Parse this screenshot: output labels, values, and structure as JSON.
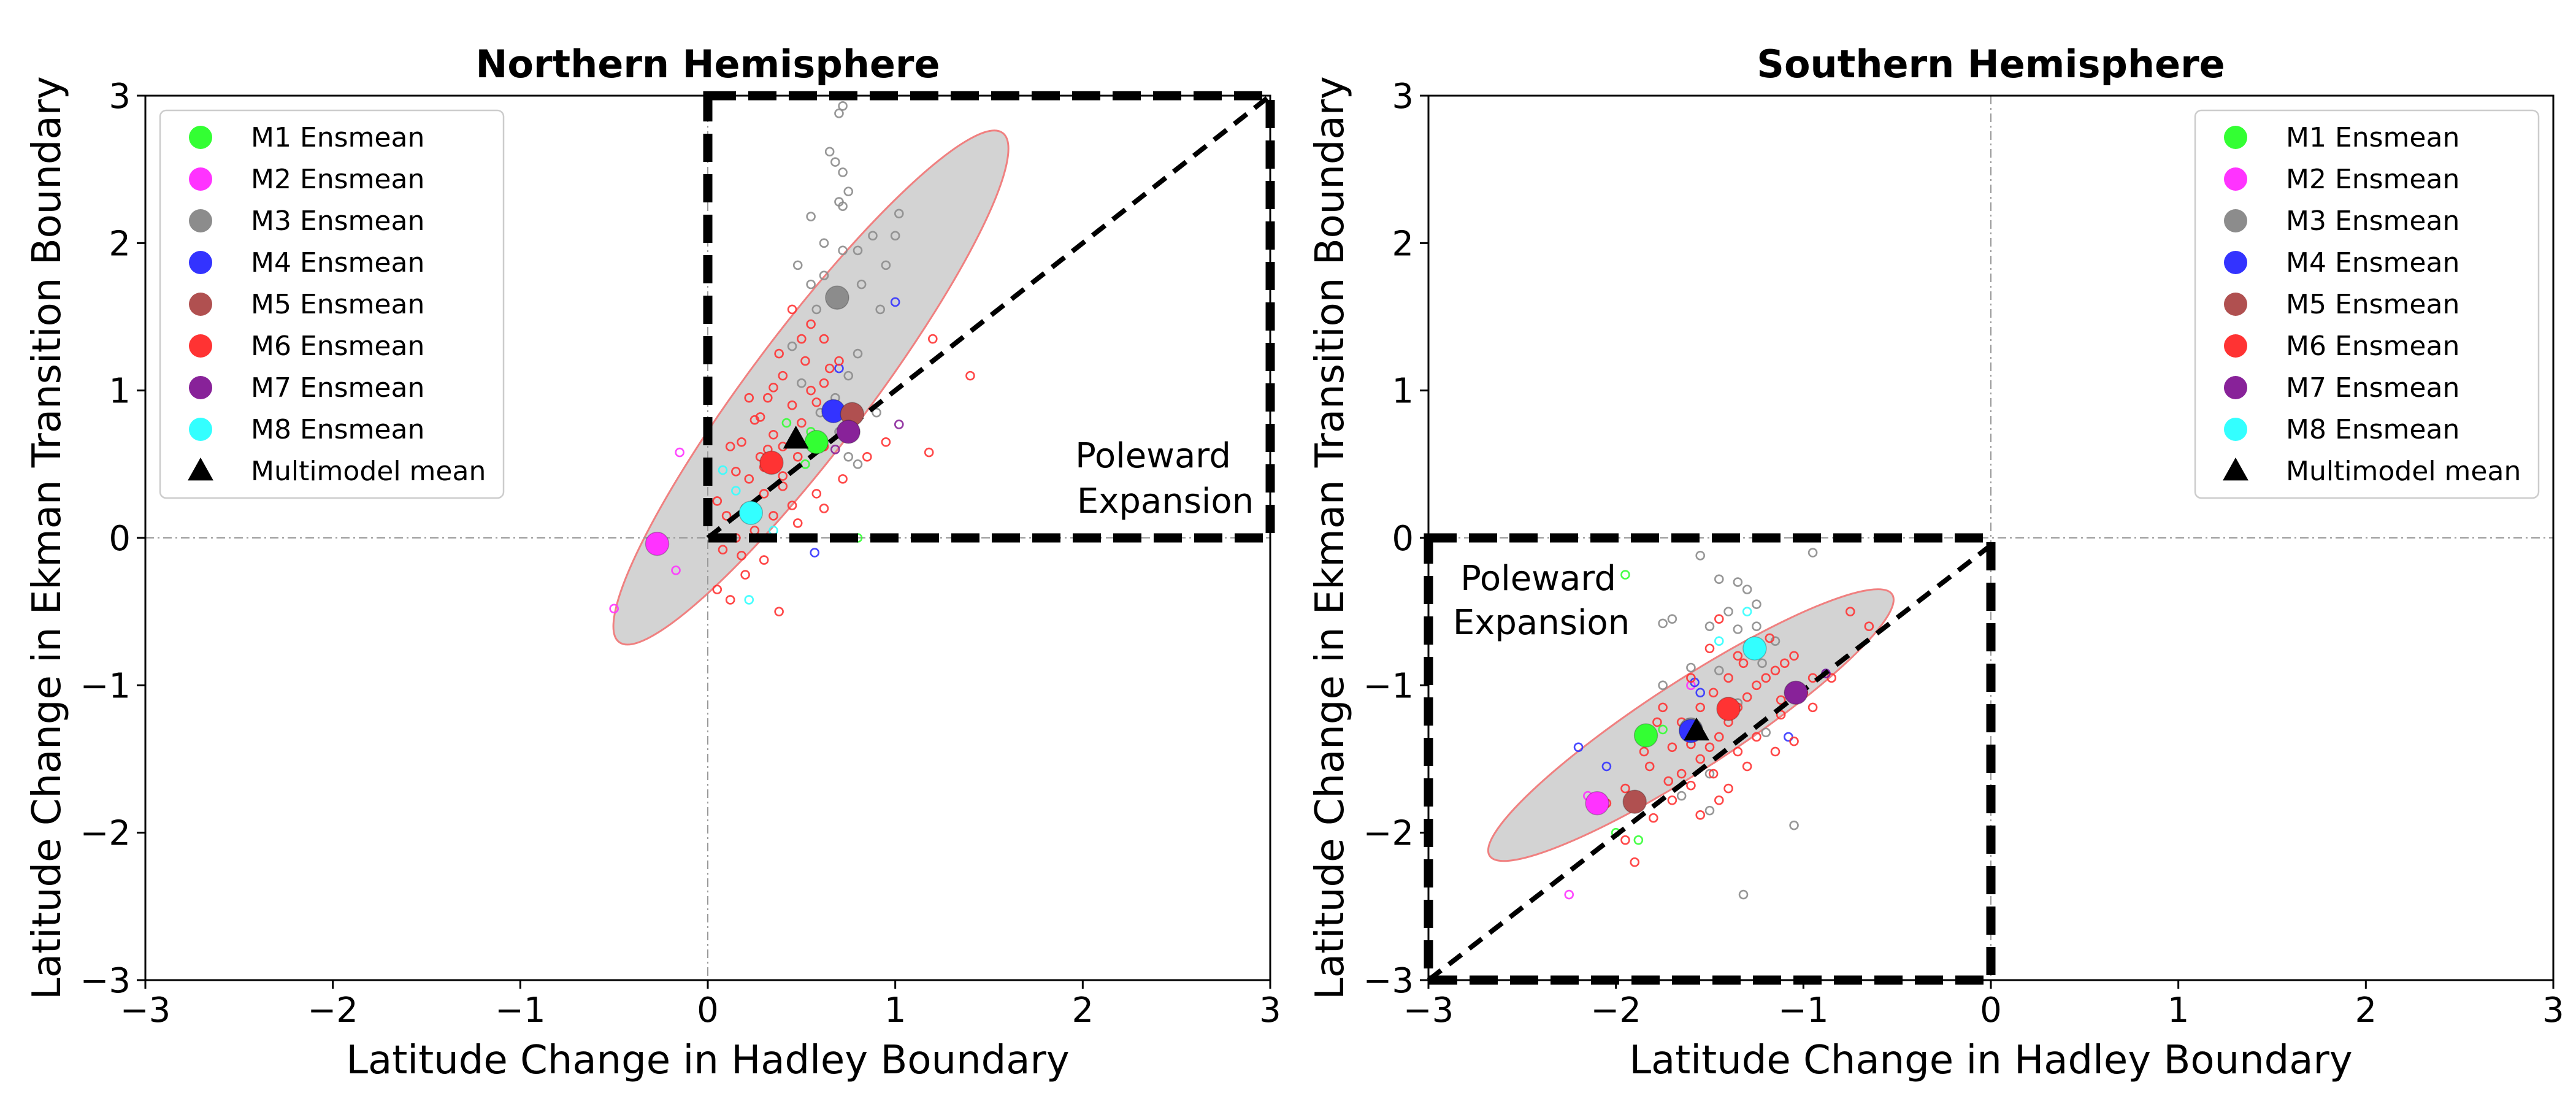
{
  "chart_data": [
    {
      "type": "scatter",
      "title": "Northern Hemisphere",
      "xlabel": "Latitude Change in Hadley Boundary",
      "ylabel": "Latitude Change in Ekman Transition Boundary",
      "xlim": [
        -3,
        3
      ],
      "ylim": [
        -3,
        3
      ],
      "xticks": [
        "−3",
        "−2",
        "−1",
        "0",
        "1",
        "2",
        "3"
      ],
      "yticks": [
        "−3",
        "−2",
        "−1",
        "0",
        "1",
        "2",
        "3"
      ],
      "grid": false,
      "zero_lines": true,
      "legend_position": "upper-left",
      "region_box": {
        "x": [
          0,
          3
        ],
        "y": [
          0,
          3
        ],
        "label": [
          "Poleward",
          "Expansion"
        ]
      },
      "diagonal": {
        "x": [
          0,
          3
        ],
        "y": [
          0,
          3
        ]
      },
      "ellipse": {
        "cx": 0.55,
        "cy": 1.02,
        "rx": 1.7,
        "ry": 0.4,
        "angle_deg": 53
      },
      "series": [
        {
          "name": "M1 Ensmean",
          "color": "#33ff33",
          "mean": [
            0.58,
            0.65
          ],
          "members": [
            [
              0.42,
              0.78
            ],
            [
              0.55,
              0.72
            ],
            [
              0.8,
              0.0
            ],
            [
              0.52,
              0.5
            ]
          ]
        },
        {
          "name": "M2 Ensmean",
          "color": "#ff33ff",
          "mean": [
            -0.27,
            -0.04
          ],
          "members": [
            [
              -0.5,
              -0.48
            ],
            [
              -0.17,
              -0.22
            ],
            [
              -0.15,
              0.58
            ]
          ]
        },
        {
          "name": "M3 Ensmean",
          "color": "#8c8c8c",
          "mean": [
            0.69,
            1.63
          ],
          "members": [
            [
              0.72,
              2.93
            ],
            [
              0.7,
              2.88
            ],
            [
              0.65,
              2.62
            ],
            [
              0.68,
              2.55
            ],
            [
              0.72,
              2.48
            ],
            [
              0.75,
              2.35
            ],
            [
              0.7,
              2.28
            ],
            [
              0.55,
              2.18
            ],
            [
              0.62,
              2.0
            ],
            [
              0.72,
              1.95
            ],
            [
              0.8,
              1.95
            ],
            [
              0.88,
              2.05
            ],
            [
              1.0,
              2.05
            ],
            [
              0.95,
              1.85
            ],
            [
              0.82,
              1.72
            ],
            [
              0.55,
              1.72
            ],
            [
              0.58,
              1.55
            ],
            [
              0.8,
              1.25
            ],
            [
              0.75,
              1.1
            ],
            [
              0.9,
              0.85
            ],
            [
              0.68,
              0.95
            ],
            [
              0.75,
              0.55
            ],
            [
              0.8,
              0.5
            ],
            [
              0.5,
              1.05
            ],
            [
              0.6,
              0.85
            ],
            [
              0.7,
              0.72
            ],
            [
              0.72,
              2.25
            ],
            [
              0.62,
              1.78
            ],
            [
              1.02,
              2.2
            ],
            [
              0.92,
              1.55
            ],
            [
              0.48,
              1.85
            ],
            [
              0.45,
              1.3
            ]
          ]
        },
        {
          "name": "M4 Ensmean",
          "color": "#3333ff",
          "mean": [
            0.67,
            0.86
          ],
          "members": [
            [
              1.0,
              1.6
            ],
            [
              0.7,
              1.15
            ],
            [
              0.57,
              -0.1
            ]
          ]
        },
        {
          "name": "M5 Ensmean",
          "color": "#b05050",
          "mean": [
            0.77,
            0.84
          ],
          "members": []
        },
        {
          "name": "M6 Ensmean",
          "color": "#ff3333",
          "mean": [
            0.34,
            0.51
          ],
          "members": [
            [
              0.12,
              -0.42
            ],
            [
              0.2,
              -0.25
            ],
            [
              0.3,
              -0.15
            ],
            [
              0.25,
              0.05
            ],
            [
              0.15,
              0.0
            ],
            [
              0.05,
              -0.35
            ],
            [
              0.38,
              -0.5
            ],
            [
              0.35,
              0.15
            ],
            [
              0.4,
              0.35
            ],
            [
              0.22,
              0.4
            ],
            [
              0.28,
              0.55
            ],
            [
              0.18,
              0.65
            ],
            [
              0.35,
              0.7
            ],
            [
              0.45,
              0.9
            ],
            [
              0.32,
              0.95
            ],
            [
              0.25,
              0.8
            ],
            [
              0.4,
              1.1
            ],
            [
              0.38,
              1.25
            ],
            [
              0.5,
              1.35
            ],
            [
              0.55,
              1.45
            ],
            [
              0.45,
              1.55
            ],
            [
              0.52,
              1.2
            ],
            [
              0.62,
              1.05
            ],
            [
              0.58,
              0.92
            ],
            [
              0.5,
              0.78
            ],
            [
              0.62,
              0.62
            ],
            [
              0.48,
              0.55
            ],
            [
              0.3,
              0.3
            ],
            [
              0.2,
              0.2
            ],
            [
              0.1,
              0.15
            ],
            [
              0.05,
              0.25
            ],
            [
              0.15,
              0.45
            ],
            [
              0.28,
              0.82
            ],
            [
              0.4,
              0.62
            ],
            [
              0.55,
              1.0
            ],
            [
              0.65,
              1.15
            ],
            [
              0.62,
              1.35
            ],
            [
              0.7,
              1.2
            ],
            [
              0.75,
              0.75
            ],
            [
              0.85,
              0.55
            ],
            [
              0.95,
              0.65
            ],
            [
              1.2,
              1.35
            ],
            [
              1.4,
              1.1
            ],
            [
              1.18,
              0.58
            ],
            [
              0.72,
              0.4
            ],
            [
              0.58,
              0.3
            ],
            [
              0.45,
              0.22
            ],
            [
              0.48,
              0.1
            ],
            [
              0.62,
              0.2
            ],
            [
              0.3,
              0.48
            ],
            [
              0.12,
              0.62
            ],
            [
              0.22,
              0.95
            ],
            [
              0.35,
              1.02
            ],
            [
              0.4,
              0.42
            ],
            [
              0.08,
              -0.08
            ],
            [
              0.18,
              -0.12
            ],
            [
              0.32,
              0.6
            ]
          ]
        },
        {
          "name": "M7 Ensmean",
          "color": "#882299",
          "mean": [
            0.75,
            0.72
          ],
          "members": [
            [
              1.02,
              0.77
            ],
            [
              0.68,
              0.6
            ]
          ]
        },
        {
          "name": "M8 Ensmean",
          "color": "#33ffff",
          "mean": [
            0.23,
            0.17
          ],
          "members": [
            [
              0.08,
              0.46
            ],
            [
              0.15,
              0.32
            ],
            [
              0.22,
              -0.42
            ],
            [
              0.35,
              0.05
            ]
          ]
        }
      ],
      "multimodel_mean": {
        "label": "Multimodel mean",
        "x": 0.47,
        "y": 0.67
      }
    },
    {
      "type": "scatter",
      "title": "Southern Hemisphere",
      "xlabel": "Latitude Change in Hadley Boundary",
      "ylabel": "Latitude Change in Ekman Transition Boundary",
      "xlim": [
        -3,
        3
      ],
      "ylim": [
        -3,
        3
      ],
      "xticks": [
        "−3",
        "−2",
        "−1",
        "0",
        "1",
        "2",
        "3"
      ],
      "yticks": [
        "−3",
        "−2",
        "−1",
        "0",
        "1",
        "2",
        "3"
      ],
      "grid": false,
      "zero_lines": true,
      "legend_position": "upper-right",
      "region_box": {
        "x": [
          -3,
          0
        ],
        "y": [
          -3,
          0
        ],
        "label": [
          "Poleward",
          "Expansion"
        ]
      },
      "diagonal": {
        "x": [
          -3,
          0
        ],
        "y": [
          -3,
          -0.05
        ]
      },
      "ellipse": {
        "cx": -1.6,
        "cy": -1.27,
        "rx": 1.28,
        "ry": 0.3,
        "angle_deg": 33
      },
      "series": [
        {
          "name": "M1 Ensmean",
          "color": "#33ff33",
          "mean": [
            -1.84,
            -1.34
          ],
          "members": [
            [
              -1.95,
              -0.25
            ],
            [
              -1.88,
              -2.05
            ],
            [
              -2.0,
              -2.0
            ],
            [
              -1.75,
              -1.3
            ]
          ]
        },
        {
          "name": "M2 Ensmean",
          "color": "#ff33ff",
          "mean": [
            -2.1,
            -1.8
          ],
          "members": [
            [
              -2.25,
              -2.42
            ],
            [
              -2.15,
              -1.75
            ],
            [
              -1.6,
              -1.0
            ]
          ]
        },
        {
          "name": "M3 Ensmean",
          "color": "#8c8c8c",
          "mean": [
            -1.6,
            -1.3
          ],
          "members": [
            [
              -1.55,
              -0.12
            ],
            [
              -1.35,
              -0.3
            ],
            [
              -1.45,
              -0.28
            ],
            [
              -0.95,
              -0.1
            ],
            [
              -1.25,
              -0.45
            ],
            [
              -1.7,
              -0.55
            ],
            [
              -1.75,
              -0.58
            ],
            [
              -1.5,
              -0.6
            ],
            [
              -1.35,
              -0.62
            ],
            [
              -1.15,
              -0.7
            ],
            [
              -1.22,
              -0.85
            ],
            [
              -1.45,
              -0.9
            ],
            [
              -1.6,
              -0.88
            ],
            [
              -1.75,
              -1.0
            ],
            [
              -1.35,
              -1.12
            ],
            [
              -1.2,
              -1.32
            ],
            [
              -1.5,
              -1.6
            ],
            [
              -1.65,
              -1.75
            ],
            [
              -1.5,
              -1.85
            ],
            [
              -1.05,
              -1.95
            ],
            [
              -1.32,
              -2.42
            ],
            [
              -1.25,
              -0.6
            ],
            [
              -1.4,
              -0.5
            ],
            [
              -1.3,
              -0.35
            ]
          ]
        },
        {
          "name": "M4 Ensmean",
          "color": "#3333ff",
          "mean": [
            -1.6,
            -1.31
          ],
          "members": [
            [
              -2.2,
              -1.42
            ],
            [
              -2.05,
              -1.55
            ],
            [
              -1.58,
              -0.98
            ],
            [
              -1.55,
              -1.05
            ],
            [
              -1.08,
              -1.35
            ],
            [
              -0.88,
              -0.92
            ]
          ]
        },
        {
          "name": "M5 Ensmean",
          "color": "#b05050",
          "mean": [
            -1.9,
            -1.79
          ],
          "members": []
        },
        {
          "name": "M6 Ensmean",
          "color": "#ff3333",
          "mean": [
            -1.4,
            -1.16
          ],
          "members": [
            [
              -1.9,
              -2.2
            ],
            [
              -1.95,
              -2.05
            ],
            [
              -1.8,
              -1.9
            ],
            [
              -1.72,
              -1.65
            ],
            [
              -1.65,
              -1.6
            ],
            [
              -1.55,
              -1.5
            ],
            [
              -1.5,
              -1.42
            ],
            [
              -1.45,
              -1.35
            ],
            [
              -1.4,
              -1.25
            ],
            [
              -1.35,
              -1.15
            ],
            [
              -1.3,
              -1.08
            ],
            [
              -1.25,
              -1.0
            ],
            [
              -1.2,
              -0.95
            ],
            [
              -1.15,
              -0.9
            ],
            [
              -1.1,
              -0.85
            ],
            [
              -1.05,
              -0.8
            ],
            [
              -1.0,
              -1.05
            ],
            [
              -0.95,
              -1.15
            ],
            [
              -1.12,
              -1.2
            ],
            [
              -1.25,
              -1.35
            ],
            [
              -1.35,
              -1.45
            ],
            [
              -1.48,
              -1.6
            ],
            [
              -1.6,
              -1.68
            ],
            [
              -1.7,
              -1.78
            ],
            [
              -1.82,
              -1.55
            ],
            [
              -1.7,
              -1.42
            ],
            [
              -1.65,
              -1.25
            ],
            [
              -1.55,
              -1.15
            ],
            [
              -1.48,
              -1.05
            ],
            [
              -1.4,
              -0.95
            ],
            [
              -1.32,
              -0.85
            ],
            [
              -1.25,
              -0.75
            ],
            [
              -1.18,
              -0.68
            ],
            [
              -1.5,
              -0.75
            ],
            [
              -1.6,
              -0.95
            ],
            [
              -1.75,
              -1.15
            ],
            [
              -1.85,
              -1.45
            ],
            [
              -1.95,
              -1.7
            ],
            [
              -2.05,
              -1.8
            ],
            [
              -1.55,
              -1.88
            ],
            [
              -1.4,
              -1.7
            ],
            [
              -1.3,
              -1.55
            ],
            [
              -1.15,
              -1.45
            ],
            [
              -1.05,
              -1.38
            ],
            [
              -0.85,
              -0.95
            ],
            [
              -0.75,
              -0.5
            ],
            [
              -0.65,
              -0.6
            ],
            [
              -1.45,
              -0.55
            ],
            [
              -1.35,
              -0.8
            ],
            [
              -1.12,
              -1.1
            ],
            [
              -0.95,
              -0.95
            ],
            [
              -1.6,
              -1.4
            ],
            [
              -1.78,
              -1.25
            ],
            [
              -1.45,
              -1.78
            ]
          ]
        },
        {
          "name": "M7 Ensmean",
          "color": "#882299",
          "mean": [
            -1.04,
            -1.05
          ],
          "members": [
            [
              -0.88,
              -0.92
            ]
          ]
        },
        {
          "name": "M8 Ensmean",
          "color": "#33ffff",
          "mean": [
            -1.26,
            -0.75
          ],
          "members": [
            [
              -1.3,
              -0.5
            ],
            [
              -1.45,
              -0.7
            ]
          ]
        }
      ],
      "multimodel_mean": {
        "label": "Multimodel mean",
        "x": -1.57,
        "y": -1.31
      }
    }
  ]
}
